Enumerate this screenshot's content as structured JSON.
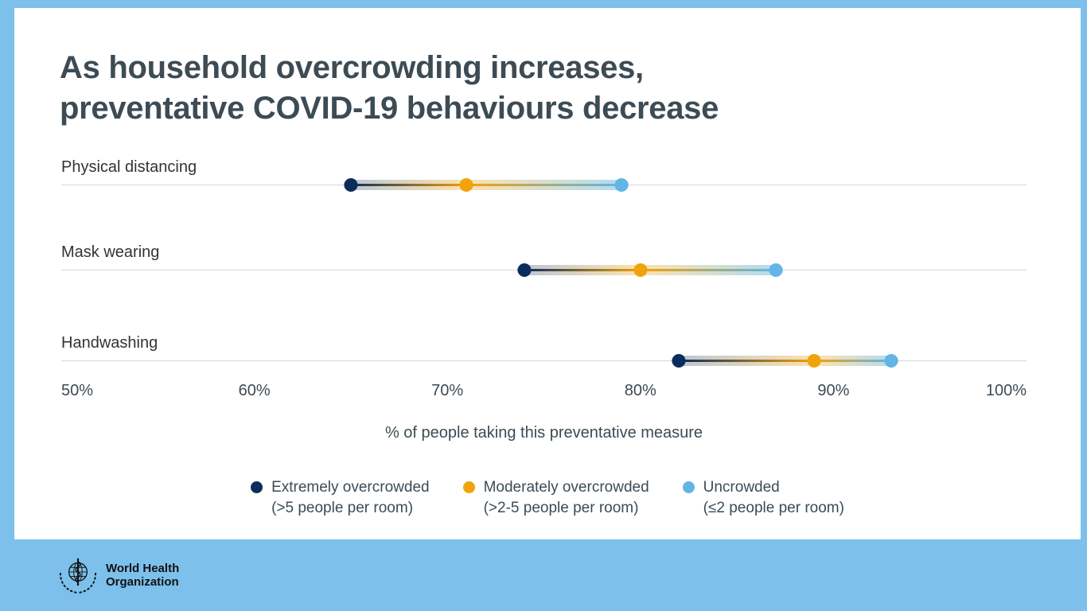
{
  "frame": {
    "background_color": "#7cc0eb",
    "card_color": "#ffffff"
  },
  "title": {
    "line1": "As household overcrowding increases,",
    "line2": "preventative COVID-19 behaviours decrease",
    "color": "#3d4b54"
  },
  "chart_data": {
    "type": "dot-range",
    "categories": [
      "Physical distancing",
      "Mask wearing",
      "Handwashing"
    ],
    "series": [
      {
        "name": "Extremely overcrowded",
        "sub": "(>5 people per room)",
        "color": "#0b2d5b",
        "values": [
          65,
          74,
          82
        ]
      },
      {
        "name": "Moderately overcrowded",
        "sub": "(>2-5 people per room)",
        "color": "#f0a30b",
        "values": [
          71,
          80,
          89
        ]
      },
      {
        "name": "Uncrowded",
        "sub": "(≤2 people per room)",
        "color": "#62b5e5",
        "values": [
          79,
          87,
          93
        ]
      }
    ],
    "xlabel": "% of people taking this preventative measure",
    "xlim": [
      50,
      100
    ],
    "x_ticks": [
      50,
      60,
      70,
      80,
      90,
      100
    ],
    "x_tick_labels": [
      "50%",
      "60%",
      "70%",
      "80%",
      "90%",
      "100%"
    ],
    "grid": "horizontal-row-lines",
    "legend_position": "bottom"
  },
  "footer": {
    "org_line1": "World Health",
    "org_line2": "Organization"
  }
}
